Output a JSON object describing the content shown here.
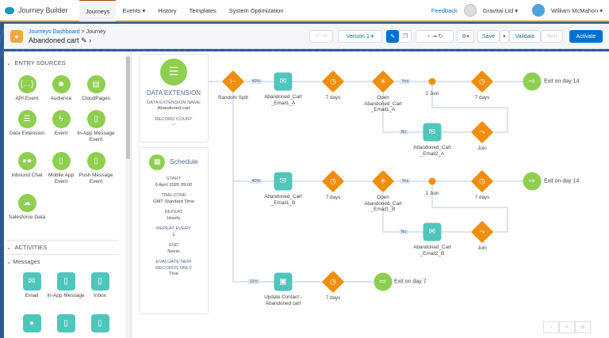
{
  "topnav": {
    "app": "Journey Builder",
    "tabs": [
      "Journeys",
      "Events ▾",
      "History",
      "Templates",
      "System Optimization"
    ],
    "feedback": "Feedback",
    "org": "Gravital Ltd ▾",
    "user": "William McMahon ▾"
  },
  "header": {
    "breadcrumb_link": "Journeys Dashboard",
    "breadcrumb_sep": " > Journey",
    "title": "Abandoned cart",
    "version": "Version 1 ▾",
    "save": "Save",
    "validate": "Validate",
    "test": "Test",
    "activate": "Activate"
  },
  "sidebar": {
    "entry_title": "ENTRY SOURCES",
    "entry": [
      "API Event",
      "Audience",
      "CloudPages",
      "Data Extension",
      "Event",
      "In-App Message Event",
      "Inbound Chat",
      "Mobile App Event",
      "Push Message Event",
      "Salesforce Data"
    ],
    "activities_title": "ACTIVITIES",
    "messages_title": "Messages",
    "messages": [
      "Email",
      "In-App Message",
      "Inbox"
    ]
  },
  "de_card": {
    "title": "DATA EXTENSION",
    "name_label": "DATA EXTENSION NAME",
    "name": "Abandoned cart",
    "count_label": "RECORD COUNT",
    "count": "--"
  },
  "schedule": {
    "title": "Schedule",
    "start_label": "START",
    "start": "9 April 2020 09:00",
    "tz_label": "TIME ZONE",
    "tz": "GMT Standard Time",
    "repeat_label": "REPEAT",
    "repeat": "Hourly",
    "every_label": "REPEAT EVERY",
    "every": "1",
    "end_label": "END",
    "end": "Never",
    "eval_label": "EVALUATE NEW RECORDS ONLY",
    "eval": "True"
  },
  "flow": {
    "split": "Random Split",
    "pct": [
      "40%",
      "40%",
      "10%"
    ],
    "yes": "Yes",
    "no": "No",
    "email1a": "Abandoned_Cart _Email1_A",
    "email1b": "Abandoned_Cart _Email1_B",
    "update": "Update Contact - Abandoned cart",
    "wait": "7 days",
    "open_a": "Open Abandoned_Cart _Email1_A",
    "open_b": "Open Abandoned_Cart _Email1_B",
    "join1": "1 Join",
    "join": "Join",
    "email2a": "Abandoned_Cart _Email2_A",
    "email2b": "Abandoned_Cart _Email2_B",
    "exit14": "Exit on day 14",
    "exit7": "Exit on day 7"
  },
  "zoom": {
    "minus": "-",
    "plus": "+",
    "fit": "⊙"
  }
}
